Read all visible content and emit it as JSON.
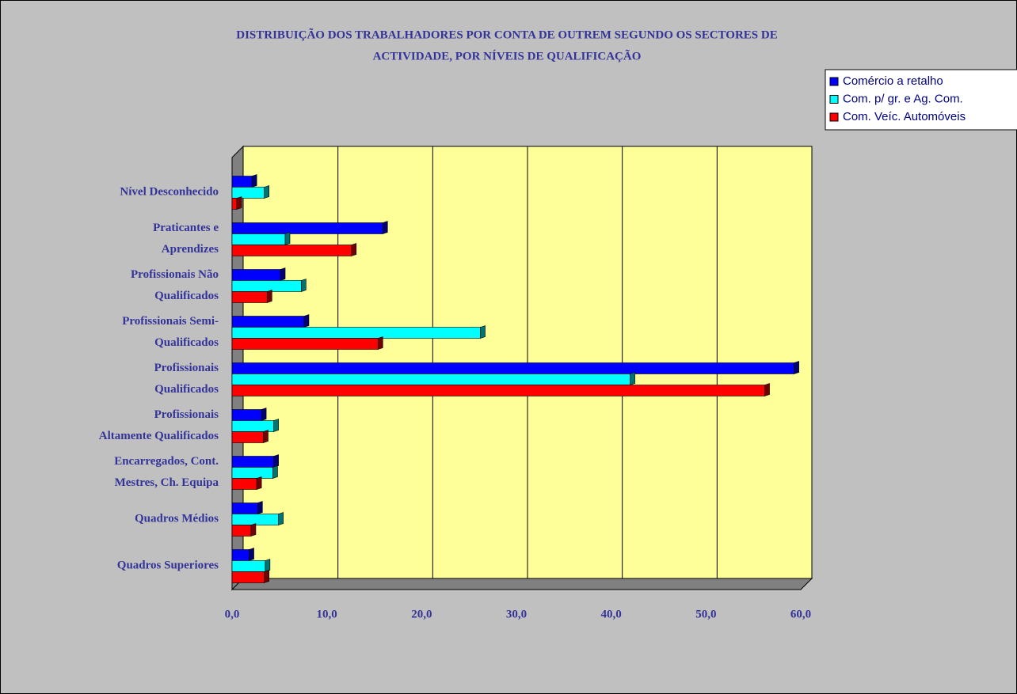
{
  "chart_data": {
    "type": "bar",
    "orientation": "horizontal",
    "title": [
      "DISTRIBUIÇÃO DOS TRABALHADORES POR CONTA DE OUTREM SEGUNDO OS SECTORES DE",
      "ACTIVIDADE, POR NÍVEIS DE QUALIFICAÇÃO"
    ],
    "categories": [
      "Nível Desconhecido",
      "Praticantes e\nAprendizes",
      "Profissionais Não\nQualificados",
      "Profissionais Semi-\nQualificados",
      "Profissionais\nQualificados",
      "Profissionais\nAltamente Qualificados",
      "Encarregados, Cont.\nMestres, Ch. Equipa",
      "Quadros Médios",
      "Quadros Superiores"
    ],
    "series": [
      {
        "name": "Comércio a retalho",
        "color": "#0000ff",
        "values": [
          2.1,
          15.9,
          5.1,
          7.6,
          59.3,
          3.1,
          4.4,
          2.7,
          1.8
        ]
      },
      {
        "name": "Com. p/ gr. e Ag. Com.",
        "color": "#00ffff",
        "values": [
          3.4,
          5.6,
          7.3,
          26.2,
          42.0,
          4.4,
          4.3,
          4.9,
          3.5
        ]
      },
      {
        "name": "Com. Veíc. Automóveis",
        "color": "#ff0000",
        "values": [
          0.5,
          12.6,
          3.7,
          15.4,
          56.2,
          3.3,
          2.6,
          2.0,
          3.4
        ]
      }
    ],
    "xlim": [
      0,
      60
    ],
    "xticks": [
      {
        "value": 0,
        "label": "0,0"
      },
      {
        "value": 10,
        "label": "10,0"
      },
      {
        "value": 20,
        "label": "20,0"
      },
      {
        "value": 30,
        "label": "30,0"
      },
      {
        "value": 40,
        "label": "40,0"
      },
      {
        "value": 50,
        "label": "50,0"
      },
      {
        "value": 60,
        "label": "60,0"
      }
    ],
    "grid": true,
    "legend": "right"
  }
}
